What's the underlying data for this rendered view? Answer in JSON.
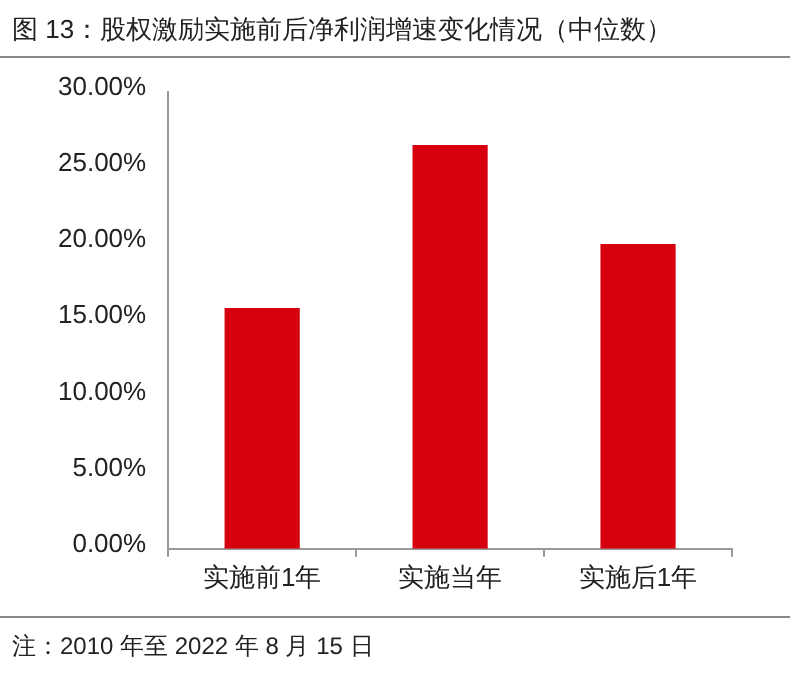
{
  "chart_data": {
    "type": "bar",
    "title": "图 13：股权激励实施前后净利润增速变化情况（中位数）",
    "categories": [
      "实施前1年",
      "实施当年",
      "实施后1年"
    ],
    "values": [
      15.8,
      26.5,
      20.0
    ],
    "color": "#d7000f",
    "ylim": [
      0,
      30
    ],
    "yticks": [
      {
        "value": 0,
        "label": "0.00%"
      },
      {
        "value": 5,
        "label": "5.00%"
      },
      {
        "value": 10,
        "label": "10.00%"
      },
      {
        "value": 15,
        "label": "15.00%"
      },
      {
        "value": 20,
        "label": "20.00%"
      },
      {
        "value": 25,
        "label": "25.00%"
      },
      {
        "value": 30,
        "label": "30.00%"
      }
    ],
    "annotations": [
      "注：2010 年至 2022 年 8 月 15 日"
    ]
  }
}
